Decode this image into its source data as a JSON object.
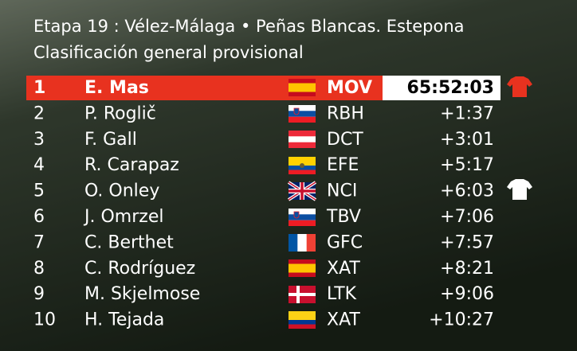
{
  "header": {
    "title": "Etapa 19 : Vélez-Málaga • Peñas Blancas. Estepona",
    "subtitle": "Clasificación general provisional"
  },
  "table": {
    "rows": [
      [
        "1",
        "E. Mas",
        "MOV",
        "65:52:03"
      ],
      [
        "2",
        "P. Roglič",
        "RBH",
        "+1:37"
      ],
      [
        "3",
        "F. Gall",
        "DCT",
        "+3:01"
      ],
      [
        "4",
        "R. Carapaz",
        "EFE",
        "+5:17"
      ],
      [
        "5",
        "O. Onley",
        "NCI",
        "+6:03"
      ],
      [
        "6",
        "J. Omrzel",
        "TBV",
        "+7:06"
      ],
      [
        "7",
        "C. Berthet",
        "GFC",
        "+7:57"
      ],
      [
        "8",
        "C. Rodríguez",
        "XAT",
        "+8:21"
      ],
      [
        "9",
        "M. Skjelmose",
        "LTK",
        "+9:06"
      ],
      [
        "10",
        "H. Tejada",
        "XAT",
        "+10:27"
      ]
    ]
  }
}
